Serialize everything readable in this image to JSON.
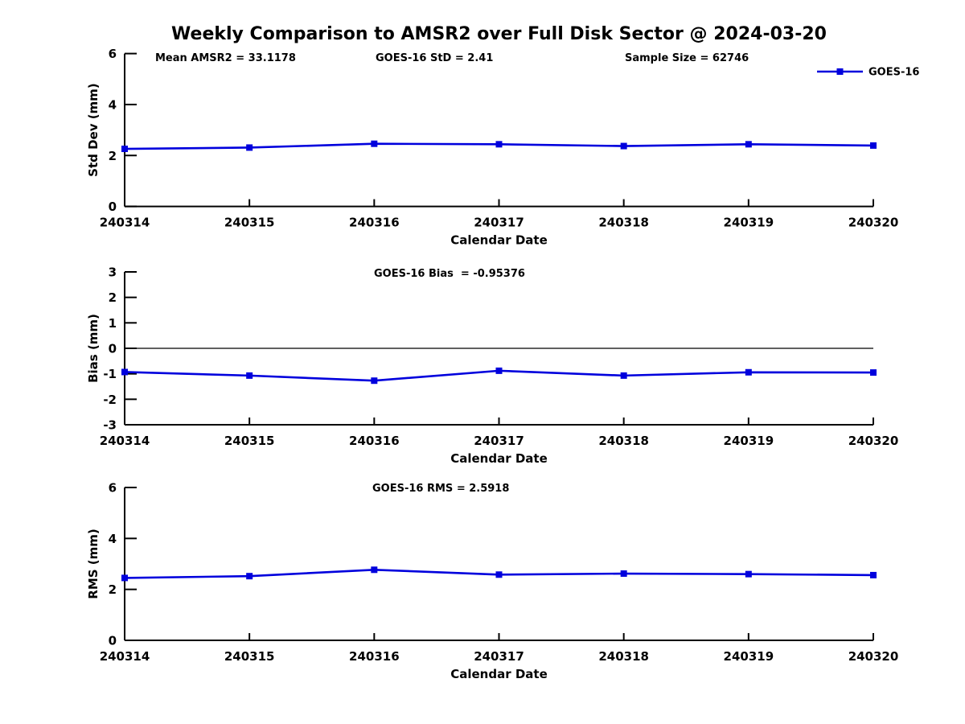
{
  "title": "Weekly Comparison to AMSR2 over Full Disk Sector @ 2024-03-20",
  "colors": {
    "line": "#0000dd",
    "axis": "#000000",
    "zero_line": "#000000",
    "text": "#000000"
  },
  "legend": {
    "label": "GOES-16"
  },
  "chart_data": [
    {
      "type": "line",
      "name": "std-dev",
      "ylabel": "Std Dev (mm)",
      "xlabel": "Calendar Date",
      "ylim": [
        0,
        6
      ],
      "yticks": [
        0,
        2,
        4,
        6
      ],
      "categories": [
        "240314",
        "240315",
        "240316",
        "240317",
        "240318",
        "240319",
        "240320"
      ],
      "annotations": [
        "Mean AMSR2 = 33.1178",
        "GOES-16 StD = 2.41",
        "Sample Size = 62746"
      ],
      "legend": "GOES-16",
      "legend_position": "top-right",
      "grid": false,
      "series": [
        {
          "name": "GOES-16",
          "values": [
            2.26,
            2.31,
            2.46,
            2.44,
            2.37,
            2.44,
            2.39
          ]
        }
      ]
    },
    {
      "type": "line",
      "name": "bias",
      "ylabel": "Bias (mm)",
      "xlabel": "Calendar Date",
      "ylim": [
        -3,
        3
      ],
      "yticks": [
        -3,
        -2,
        -1,
        0,
        1,
        2,
        3
      ],
      "categories": [
        "240314",
        "240315",
        "240316",
        "240317",
        "240318",
        "240319",
        "240320"
      ],
      "annotations": [
        "GOES-16 Bias  = -0.95376"
      ],
      "zero_line": true,
      "grid": false,
      "series": [
        {
          "name": "GOES-16",
          "values": [
            -0.93,
            -1.07,
            -1.27,
            -0.88,
            -1.07,
            -0.94,
            -0.95
          ]
        }
      ]
    },
    {
      "type": "line",
      "name": "rms",
      "ylabel": "RMS (mm)",
      "xlabel": "Calendar Date",
      "ylim": [
        0,
        6
      ],
      "yticks": [
        0,
        2,
        4,
        6
      ],
      "categories": [
        "240314",
        "240315",
        "240316",
        "240317",
        "240318",
        "240319",
        "240320"
      ],
      "annotations": [
        "GOES-16 RMS = 2.5918"
      ],
      "grid": false,
      "series": [
        {
          "name": "GOES-16",
          "values": [
            2.45,
            2.52,
            2.77,
            2.58,
            2.62,
            2.6,
            2.56
          ]
        }
      ]
    }
  ]
}
